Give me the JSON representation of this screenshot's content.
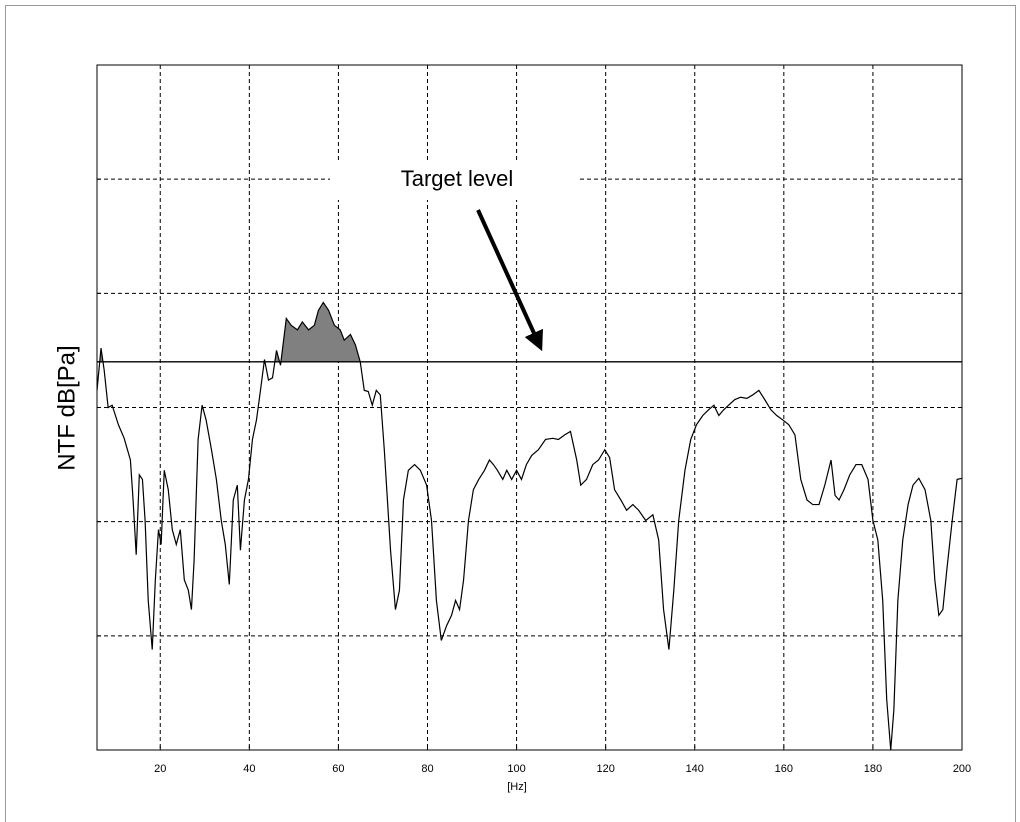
{
  "chart_data": {
    "type": "line",
    "ylabel": "NTF dB[Pa]",
    "xlabel": "[Hz]",
    "annotation": "Target level",
    "target_level": 3.4,
    "color": "#000000",
    "fill_color": "#808080",
    "xlim": [
      5.8,
      200
    ],
    "xticks": [
      20,
      40,
      60,
      80,
      100,
      120,
      140,
      160,
      180,
      200
    ],
    "ylim": [
      0,
      6
    ],
    "yticks": [
      1,
      2,
      3,
      4,
      5
    ],
    "grid": true,
    "x": [
      5.8,
      6.7,
      7.4,
      8.3,
      9.2,
      10.6,
      11.9,
      13.3,
      13.9,
      14.6,
      15.3,
      16.0,
      16.6,
      17.3,
      18.2,
      18.9,
      19.6,
      20.2,
      20.9,
      21.8,
      22.7,
      23.6,
      24.5,
      25.4,
      26.3,
      27.0,
      27.6,
      28.5,
      29.4,
      30.3,
      31.5,
      32.6,
      33.7,
      34.6,
      35.5,
      36.4,
      37.3,
      38.0,
      38.9,
      39.8,
      40.7,
      41.6,
      42.5,
      43.4,
      44.3,
      45.2,
      46.1,
      47.0,
      48.3,
      49.4,
      50.8,
      51.9,
      53.3,
      54.6,
      55.5,
      56.6,
      57.8,
      59.1,
      60.4,
      61.3,
      62.7,
      63.8,
      64.9,
      65.8,
      66.7,
      67.6,
      68.5,
      69.4,
      70.3,
      71.7,
      72.8,
      73.7,
      74.6,
      75.7,
      77.1,
      78.4,
      79.8,
      80.9,
      82.0,
      83.1,
      84.3,
      85.4,
      86.3,
      87.2,
      88.1,
      89.2,
      90.3,
      91.5,
      92.8,
      93.9,
      94.8,
      95.7,
      96.9,
      97.8,
      98.9,
      100.0,
      101.1,
      102.2,
      103.4,
      104.9,
      106.5,
      108.1,
      109.4,
      110.8,
      112.1,
      113.5,
      114.4,
      115.7,
      117.1,
      118.4,
      119.8,
      120.9,
      122.0,
      123.4,
      124.7,
      126.1,
      127.4,
      129.0,
      130.6,
      131.9,
      133.0,
      134.2,
      135.3,
      136.4,
      137.8,
      139.1,
      140.4,
      141.8,
      143.1,
      144.3,
      145.4,
      146.5,
      147.6,
      149.0,
      150.3,
      151.7,
      153.0,
      154.4,
      155.7,
      157.1,
      158.4,
      159.8,
      161.1,
      162.5,
      163.8,
      165.2,
      166.5,
      167.9,
      169.2,
      170.6,
      171.5,
      172.4,
      173.5,
      174.8,
      176.2,
      177.5,
      178.9,
      180.0,
      181.1,
      182.2,
      183.1,
      184.0,
      184.7,
      185.6,
      186.7,
      187.9,
      189.0,
      190.3,
      191.7,
      193.0,
      193.9,
      194.8,
      195.7,
      196.6,
      197.8,
      198.9,
      200
    ],
    "values": [
      3.15,
      3.52,
      3.33,
      3.0,
      3.02,
      2.85,
      2.73,
      2.54,
      2.19,
      1.71,
      2.41,
      2.37,
      2.01,
      1.31,
      0.88,
      1.49,
      1.93,
      1.8,
      2.45,
      2.28,
      1.93,
      1.8,
      1.93,
      1.49,
      1.4,
      1.23,
      1.66,
      2.72,
      3.02,
      2.89,
      2.63,
      2.37,
      2.01,
      1.8,
      1.45,
      2.19,
      2.32,
      1.75,
      2.19,
      2.37,
      2.72,
      2.89,
      3.15,
      3.42,
      3.24,
      3.26,
      3.5,
      3.37,
      3.78,
      3.72,
      3.68,
      3.75,
      3.68,
      3.72,
      3.85,
      3.92,
      3.85,
      3.72,
      3.68,
      3.59,
      3.64,
      3.55,
      3.4,
      3.15,
      3.14,
      3.02,
      3.15,
      3.11,
      2.63,
      1.75,
      1.23,
      1.4,
      2.19,
      2.45,
      2.5,
      2.45,
      2.32,
      2.01,
      1.31,
      0.96,
      1.09,
      1.18,
      1.31,
      1.23,
      1.49,
      2.01,
      2.28,
      2.37,
      2.45,
      2.54,
      2.5,
      2.45,
      2.37,
      2.45,
      2.37,
      2.45,
      2.37,
      2.5,
      2.58,
      2.63,
      2.72,
      2.73,
      2.72,
      2.76,
      2.79,
      2.54,
      2.32,
      2.37,
      2.5,
      2.54,
      2.63,
      2.56,
      2.28,
      2.19,
      2.1,
      2.15,
      2.1,
      2.01,
      2.06,
      1.84,
      1.23,
      0.88,
      1.4,
      2.01,
      2.45,
      2.72,
      2.85,
      2.93,
      2.98,
      3.02,
      2.93,
      2.98,
      3.02,
      3.07,
      3.09,
      3.08,
      3.11,
      3.15,
      3.07,
      2.98,
      2.93,
      2.89,
      2.85,
      2.76,
      2.37,
      2.19,
      2.15,
      2.15,
      2.32,
      2.54,
      2.23,
      2.19,
      2.28,
      2.41,
      2.5,
      2.5,
      2.37,
      2.01,
      1.84,
      1.31,
      0.44,
      0.0,
      0.35,
      1.31,
      1.84,
      2.15,
      2.32,
      2.38,
      2.28,
      2.01,
      1.49,
      1.18,
      1.23,
      1.58,
      2.01,
      2.37,
      2.38
    ]
  }
}
